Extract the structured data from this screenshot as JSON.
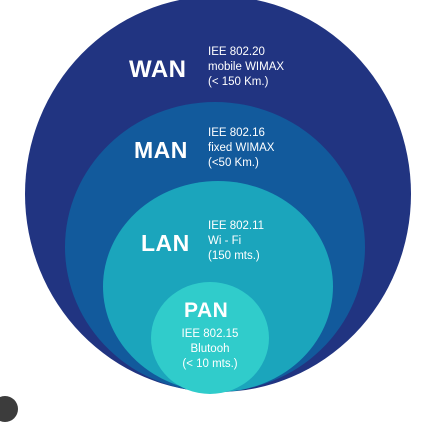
{
  "diagram": {
    "colors": {
      "wan": "#213481",
      "man": "#125a9c",
      "lan": "#1ba5bc",
      "pan": "#30cccb",
      "text": "#ffffff"
    },
    "layers": {
      "wan": {
        "abbr": "WAN",
        "lines": [
          "IEE 802.20",
          "mobile WIMAX",
          "(< 150 Km.)"
        ]
      },
      "man": {
        "abbr": "MAN",
        "lines": [
          "IEE 802.16",
          "fixed WIMAX",
          "(<50 Km.)"
        ]
      },
      "lan": {
        "abbr": "LAN",
        "lines": [
          "IEE 802.11",
          "Wi - Fi",
          "(150 mts.)"
        ]
      },
      "pan": {
        "abbr": "PAN",
        "lines": [
          "IEE 802.15",
          "Blutooh",
          "(< 10 mts.)"
        ]
      }
    }
  }
}
